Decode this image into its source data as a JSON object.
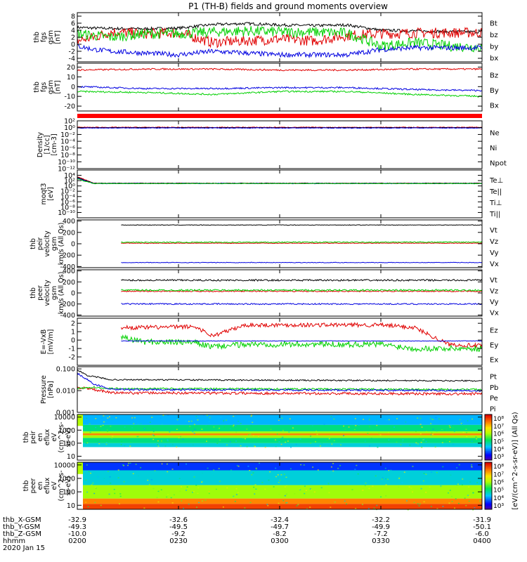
{
  "title": "P1 (TH-B) fields and ground moments overview",
  "chart_data": [
    {
      "type": "line",
      "ylabel": [
        "thb",
        "fgs",
        "gsm",
        "[nT]"
      ],
      "ylim": [
        -5,
        9
      ],
      "ticks": [
        {
          "v": 8,
          "label": "8"
        },
        {
          "v": 6,
          "label": "6"
        },
        {
          "v": 4,
          "label": "4"
        },
        {
          "v": 2,
          "label": "2"
        },
        {
          "v": 0,
          "label": "0"
        },
        {
          "v": -2,
          "label": "-2"
        },
        {
          "v": -4,
          "label": "-4"
        }
      ],
      "series": [
        {
          "name": "Bt",
          "color": "#000000",
          "x": [
            0,
            5,
            10,
            20,
            30,
            40,
            50,
            60,
            70,
            80,
            90,
            100,
            110,
            120
          ],
          "y": [
            4.8,
            4.6,
            4.5,
            4.4,
            4.6,
            5.6,
            5.9,
            5.5,
            5.3,
            5.5,
            4.0,
            3.8,
            3.6,
            3.5
          ],
          "noise": 0.4
        },
        {
          "name": "bz",
          "color": "#e00000",
          "x": [
            0,
            5,
            10,
            20,
            30,
            40,
            50,
            60,
            70,
            80,
            90,
            100,
            110,
            120
          ],
          "y": [
            1.0,
            2.0,
            3.5,
            3.0,
            3.3,
            0.5,
            1.0,
            1.5,
            1.0,
            2.5,
            3.0,
            3.2,
            3.3,
            3.3
          ],
          "noise": 1.5
        },
        {
          "name": "by",
          "color": "#00d000",
          "x": [
            0,
            5,
            10,
            20,
            30,
            40,
            50,
            60,
            70,
            80,
            90,
            100,
            110,
            120
          ],
          "y": [
            3.0,
            2.5,
            2.0,
            3.0,
            3.0,
            3.5,
            3.8,
            3.5,
            3.5,
            3.2,
            -0.5,
            0.5,
            -0.5,
            -0.8
          ],
          "noise": 1.5
        },
        {
          "name": "bx",
          "color": "#0000e0",
          "x": [
            0,
            5,
            10,
            20,
            30,
            40,
            50,
            60,
            70,
            80,
            90,
            100,
            110,
            120
          ],
          "y": [
            -0.5,
            -1.5,
            -2.0,
            -2.5,
            -3.0,
            -2.0,
            -2.5,
            -3.0,
            -3.0,
            -3.0,
            -1.5,
            -1.0,
            -1.0,
            -1.0
          ],
          "noise": 0.7
        }
      ]
    },
    {
      "type": "line",
      "ylabel": [
        "thb",
        "fgs",
        "gsm",
        "[nT]"
      ],
      "ylim": [
        -25,
        24
      ],
      "ticks": [
        {
          "v": 20,
          "label": "20"
        },
        {
          "v": 10,
          "label": "10"
        },
        {
          "v": 0,
          "label": "0"
        },
        {
          "v": -10,
          "label": "-10"
        },
        {
          "v": -20,
          "label": "-20"
        }
      ],
      "series": [
        {
          "name": "Bz",
          "color": "#e00000",
          "x": [
            0,
            20,
            40,
            60,
            80,
            100,
            120
          ],
          "y": [
            17,
            18,
            18,
            17,
            17,
            18,
            18
          ],
          "noise": 0.8
        },
        {
          "name": "By",
          "color": "#00d000",
          "x": [
            0,
            20,
            40,
            60,
            80,
            100,
            120
          ],
          "y": [
            -5,
            -6,
            -8,
            -5,
            -5,
            -8,
            -10
          ],
          "noise": 0.8
        },
        {
          "name": "Bx",
          "color": "#0000e0",
          "x": [
            0,
            20,
            40,
            60,
            80,
            100,
            120
          ],
          "y": [
            0,
            -2,
            -2,
            -1,
            -1,
            -3,
            -4
          ],
          "noise": 0.8
        }
      ]
    },
    {
      "type": "line",
      "ylabel": [
        "Density",
        "[1/cc]",
        "[cm-3]"
      ],
      "log": true,
      "ylim": [
        -12,
        2
      ],
      "ticks": [
        {
          "v": 2,
          "label": "10²"
        },
        {
          "v": 0,
          "label": "10⁰"
        },
        {
          "v": -2,
          "label": "10⁻²"
        },
        {
          "v": -4,
          "label": "10⁻⁴"
        },
        {
          "v": -6,
          "label": "10⁻⁶"
        },
        {
          "v": -8,
          "label": "10⁻⁸"
        },
        {
          "v": -10,
          "label": "10⁻¹⁰"
        },
        {
          "v": -12,
          "label": "10⁻¹²"
        }
      ],
      "series": [
        {
          "name": "Ne",
          "color": "#e00000",
          "x": [
            0,
            120
          ],
          "y": [
            0.1,
            0.1
          ],
          "noise": 0.1
        },
        {
          "name": "Ni",
          "color": "#000000",
          "x": [
            0,
            120
          ],
          "y": [
            0.0,
            0.0
          ],
          "noise": 0.05
        },
        {
          "name": "Npot",
          "color": "#0000e0",
          "x": [
            0,
            120
          ],
          "y": [
            -0.1,
            -0.1
          ],
          "noise": 0.1
        }
      ]
    },
    {
      "type": "line",
      "ylabel": [
        "moqt3",
        "[eV]"
      ],
      "log": true,
      "ylim": [
        -12,
        6
      ],
      "ticks": [
        {
          "v": 4,
          "label": "10⁴"
        },
        {
          "v": 2,
          "label": "10²"
        },
        {
          "v": 0,
          "label": "10⁰"
        },
        {
          "v": -2,
          "label": "10⁻²"
        },
        {
          "v": -4,
          "label": "10⁻⁴"
        },
        {
          "v": -6,
          "label": "10⁻⁶"
        },
        {
          "v": -8,
          "label": "10⁻⁸"
        },
        {
          "v": -10,
          "label": "10⁻¹⁰"
        }
      ],
      "series": [
        {
          "name": "Te⊥",
          "color": "#e00000",
          "x": [
            0,
            2,
            5,
            120
          ],
          "y": [
            3.5,
            2.5,
            1.0,
            1.0
          ],
          "noise": 0.1
        },
        {
          "name": "Te||",
          "color": "#000000",
          "x": [
            0,
            2,
            5,
            120
          ],
          "y": [
            3.2,
            2.2,
            1.0,
            1.0
          ],
          "noise": 0.1
        },
        {
          "name": "Ti⊥",
          "color": "#0000e0",
          "x": [
            0,
            2,
            5,
            120
          ],
          "y": [
            3.0,
            2.0,
            0.9,
            0.9
          ],
          "noise": 0.1
        },
        {
          "name": "Ti||",
          "color": "#00d000",
          "x": [
            0,
            2,
            5,
            120
          ],
          "y": [
            2.8,
            1.8,
            0.9,
            0.9
          ],
          "noise": 0.1
        }
      ]
    },
    {
      "type": "line",
      "ylabel": [
        "thb",
        "peir",
        "velocity",
        "gsm",
        "km/s (All Qs)"
      ],
      "ylim": [
        -420,
        420
      ],
      "ticks": [
        {
          "v": 400,
          "label": "400"
        },
        {
          "v": 200,
          "label": "200"
        },
        {
          "v": 0,
          "label": "0"
        },
        {
          "v": -200,
          "label": "-200"
        },
        {
          "v": -400,
          "label": "-400"
        }
      ],
      "series": [
        {
          "name": "Vt",
          "color": "#000000",
          "x": [
            13,
            120
          ],
          "y": [
            330,
            330
          ],
          "noise": 5
        },
        {
          "name": "Vz",
          "color": "#e00000",
          "x": [
            13,
            120
          ],
          "y": [
            10,
            10
          ],
          "noise": 5
        },
        {
          "name": "Vy",
          "color": "#00d000",
          "x": [
            13,
            120
          ],
          "y": [
            25,
            30
          ],
          "noise": 8
        },
        {
          "name": "Vx",
          "color": "#0000e0",
          "x": [
            13,
            120
          ],
          "y": [
            -330,
            -330
          ],
          "noise": 5
        }
      ]
    },
    {
      "type": "line",
      "ylabel": [
        "thb",
        "peer",
        "velocity",
        "gsm",
        "km/s (All Qs)"
      ],
      "ylim": [
        -420,
        420
      ],
      "ticks": [
        {
          "v": 400,
          "label": "400"
        },
        {
          "v": 200,
          "label": "200"
        },
        {
          "v": 0,
          "label": "0"
        },
        {
          "v": -200,
          "label": "-200"
        },
        {
          "v": -400,
          "label": "-400"
        }
      ],
      "series": [
        {
          "name": "Vt",
          "color": "#000000",
          "x": [
            13,
            120
          ],
          "y": [
            230,
            230
          ],
          "noise": 15
        },
        {
          "name": "Vz",
          "color": "#e00000",
          "x": [
            13,
            120
          ],
          "y": [
            30,
            30
          ],
          "noise": 10
        },
        {
          "name": "Vy",
          "color": "#00d000",
          "x": [
            13,
            120
          ],
          "y": [
            50,
            50
          ],
          "noise": 15
        },
        {
          "name": "Vx",
          "color": "#0000e0",
          "x": [
            13,
            120
          ],
          "y": [
            -200,
            -200
          ],
          "noise": 12
        }
      ]
    },
    {
      "type": "line",
      "ylabel": [
        "E=-VxB",
        "[mV/m]"
      ],
      "ylim": [
        -3,
        2.6
      ],
      "ticks": [
        {
          "v": 2,
          "label": "2"
        },
        {
          "v": 1,
          "label": "1"
        },
        {
          "v": 0,
          "label": "0"
        },
        {
          "v": -1,
          "label": "-1"
        },
        {
          "v": -2,
          "label": "-2"
        }
      ],
      "series": [
        {
          "name": "Ez",
          "color": "#e00000",
          "x": [
            13,
            20,
            35,
            40,
            50,
            70,
            90,
            100,
            105,
            110,
            120
          ],
          "y": [
            1.5,
            1.5,
            1.6,
            0.5,
            1.8,
            1.8,
            1.8,
            1.5,
            0.5,
            -0.5,
            -0.7
          ],
          "noise": 0.25
        },
        {
          "name": "Ey",
          "color": "#00d000",
          "x": [
            13,
            20,
            35,
            40,
            50,
            70,
            90,
            100,
            105,
            110,
            120
          ],
          "y": [
            0.3,
            -0.2,
            -0.3,
            -0.8,
            -0.5,
            -0.5,
            -0.5,
            -1.0,
            -1.0,
            -1.0,
            -1.0
          ],
          "noise": 0.35
        },
        {
          "name": "Ex",
          "color": "#0000e0",
          "x": [
            13,
            120
          ],
          "y": [
            -0.1,
            -0.1
          ],
          "noise": 0.03
        }
      ]
    },
    {
      "type": "line",
      "ylabel": [
        "Pressure",
        "[nPa]"
      ],
      "log": true,
      "ylim": [
        -3,
        -0.9
      ],
      "ticks": [
        {
          "v": -1,
          "label": "0.100"
        },
        {
          "v": -2,
          "label": "0.010"
        },
        {
          "v": -3,
          "label": "0.001"
        }
      ],
      "series": [
        {
          "name": "Pt",
          "color": "#000000",
          "x": [
            0,
            3,
            10,
            120
          ],
          "y": [
            -1.05,
            -1.3,
            -1.5,
            -1.55
          ],
          "noise": 0.03
        },
        {
          "name": "Pb",
          "color": "#e00000",
          "x": [
            0,
            5,
            10,
            120
          ],
          "y": [
            -1.85,
            -1.95,
            -2.1,
            -2.15
          ],
          "noise": 0.06
        },
        {
          "name": "Pe",
          "color": "#00d000",
          "x": [
            0,
            5,
            10,
            120
          ],
          "y": [
            -1.9,
            -1.85,
            -1.9,
            -1.95
          ],
          "noise": 0.04
        },
        {
          "name": "Pi",
          "color": "#0000e0",
          "x": [
            0,
            5,
            10,
            120
          ],
          "y": [
            -1.2,
            -1.7,
            -1.95,
            -2.0
          ],
          "noise": 0.04
        }
      ]
    },
    {
      "type": "heatmap",
      "ylabel": [
        "thb",
        "peir",
        "en",
        "eflux",
        "eV",
        "(cm^2-s-",
        "sr-eV)"
      ],
      "log": true,
      "ylim": [
        0.7,
        4.2
      ],
      "ticks": [
        {
          "v": 4,
          "label": "10000"
        },
        {
          "v": 3,
          "label": "1000"
        },
        {
          "v": 2,
          "label": "100"
        },
        {
          "v": 1,
          "label": "10"
        }
      ],
      "band_top_levels": [
        4.2,
        3.4,
        2.9,
        2.75,
        2.6,
        2.4,
        2.0,
        1.7
      ],
      "band_values": [
        4.2,
        5.0,
        6.0,
        7.5,
        6.0,
        5.0,
        4.5
      ]
    },
    {
      "type": "heatmap",
      "ylabel": [
        "thb",
        "peer",
        "en",
        "eflux",
        "eV",
        "(cm^2-s-",
        "sr-eV)"
      ],
      "log": true,
      "ylim": [
        0.7,
        4.2
      ],
      "ticks": [
        {
          "v": 4,
          "label": "10000"
        },
        {
          "v": 3,
          "label": "1000"
        },
        {
          "v": 2,
          "label": "100"
        },
        {
          "v": 1,
          "label": "10"
        }
      ],
      "band_top_levels": [
        4.2,
        3.6,
        2.5,
        1.5,
        1.1,
        0.7
      ],
      "band_values": [
        3.5,
        4.5,
        6.0,
        7.5,
        8.0
      ]
    }
  ],
  "colorbar": {
    "ticks": [
      {
        "v": 8,
        "label": "10⁸"
      },
      {
        "v": 7,
        "label": "10⁷"
      },
      {
        "v": 6,
        "label": "10⁶"
      },
      {
        "v": 5,
        "label": "10⁵"
      },
      {
        "v": 4,
        "label": "10⁴"
      },
      {
        "v": 3,
        "label": "10³"
      }
    ],
    "label": "[eV/(cm^2-s-sr-eV)] (All Qs)",
    "range": [
      2.5,
      8.5
    ]
  },
  "time_axis": {
    "xlim": [
      0,
      120
    ],
    "major": [
      {
        "v": 0
      },
      {
        "v": 30
      },
      {
        "v": 60
      },
      {
        "v": 90
      },
      {
        "v": 120
      }
    ],
    "rows": [
      {
        "label": "thb_X-GSM",
        "values": [
          "-32.9",
          "-32.6",
          "-32.4",
          "-32.2",
          "-31.9"
        ]
      },
      {
        "label": "thb_Y-GSM",
        "values": [
          "-49.3",
          "-49.5",
          "-49.7",
          "-49.9",
          "-50.1"
        ]
      },
      {
        "label": "thb_Z-GSM",
        "values": [
          "-10.0",
          "-9.2",
          "-8.2",
          "-7.2",
          "-6.0"
        ]
      },
      {
        "label": "hhmm",
        "values": [
          "0200",
          "0230",
          "0300",
          "0330",
          "0400"
        ]
      }
    ],
    "date": "2020 Jan 15"
  }
}
